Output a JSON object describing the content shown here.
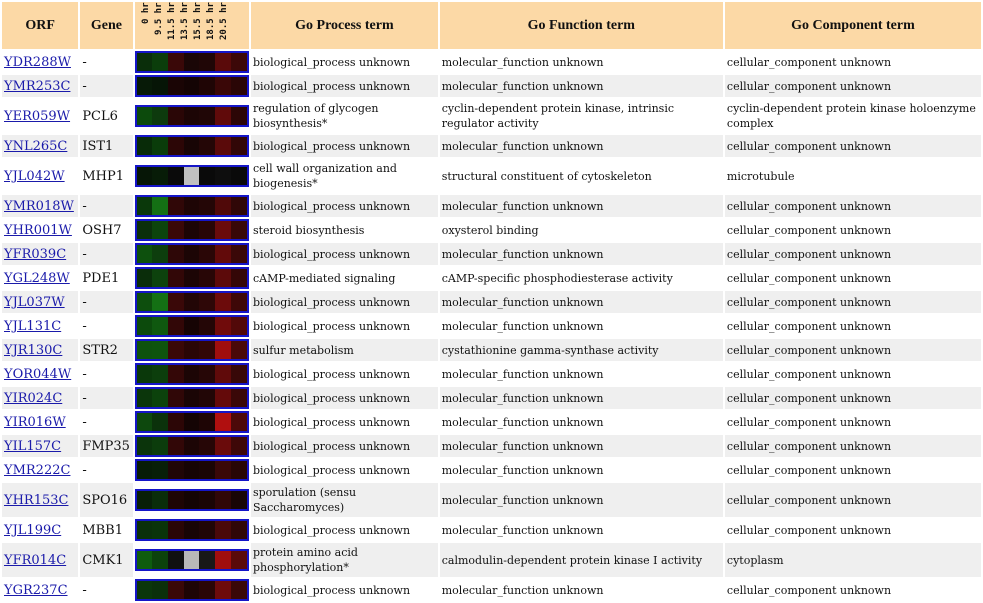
{
  "headers": {
    "orf": "ORF",
    "gene": "Gene",
    "time_points": [
      "0 hr",
      "9.5 hr",
      "11.5 hr",
      "13.5 hr",
      "15.5 hr",
      "18.5 hr",
      "20.5 hr"
    ],
    "process": "Go Process term",
    "function": "Go Function term",
    "component": "Go Component term"
  },
  "rows": [
    {
      "orf": "YDR288W",
      "gene": "-",
      "process": "biological_process unknown",
      "function": "molecular_function unknown",
      "component": "cellular_component unknown",
      "heat": [
        "#0a2e0a",
        "#0b3d0b",
        "#3a0808",
        "#1a0606",
        "#200606",
        "#5a0a0a",
        "#3c0808"
      ]
    },
    {
      "orf": "YMR253C",
      "gene": "-",
      "process": "biological_process unknown",
      "function": "molecular_function unknown",
      "component": "cellular_component unknown",
      "heat": [
        "#071a07",
        "#061506",
        "#1a0505",
        "#140404",
        "#1f0505",
        "#3a0707",
        "#2a0606"
      ]
    },
    {
      "orf": "YER059W",
      "gene": "PCL6",
      "process": "regulation of glycogen biosynthesis*",
      "function": "cyclin-dependent protein kinase, intrinsic regulator activity",
      "component": "cyclin-dependent protein kinase holoenzyme complex",
      "heat": [
        "#0c4a0c",
        "#0d3a0d",
        "#2a0606",
        "#1c0505",
        "#200606",
        "#600a0a",
        "#2c0606"
      ]
    },
    {
      "orf": "YNL265C",
      "gene": "IST1",
      "process": "biological_process unknown",
      "function": "molecular_function unknown",
      "component": "cellular_component unknown",
      "heat": [
        "#082b08",
        "#0a3c0a",
        "#2c0606",
        "#180505",
        "#240606",
        "#5a0a0a",
        "#320707"
      ]
    },
    {
      "orf": "YJL042W",
      "gene": "MHP1",
      "process": "cell wall organization and biogenesis*",
      "function": "structural constituent of cytoskeleton",
      "component": "microtubule",
      "heat": [
        "#061606",
        "#071c07",
        "#0a0a0a",
        "#c0c0c0",
        "#0a0a0a",
        "#0e0e0e",
        "#0a0a0a"
      ]
    },
    {
      "orf": "YMR018W",
      "gene": "-",
      "process": "biological_process unknown",
      "function": "molecular_function unknown",
      "component": "cellular_component unknown",
      "heat": [
        "#0a380a",
        "#147014",
        "#300707",
        "#1e0505",
        "#240606",
        "#500909",
        "#300707"
      ]
    },
    {
      "orf": "YHR001W",
      "gene": "OSH7",
      "process": "steroid biosynthesis",
      "function": "oxysterol binding",
      "component": "cellular_component unknown",
      "heat": [
        "#0b2f0b",
        "#0c440c",
        "#3a0808",
        "#1c0505",
        "#280606",
        "#6a0b0b",
        "#380808"
      ]
    },
    {
      "orf": "YFR039C",
      "gene": "-",
      "process": "biological_process unknown",
      "function": "molecular_function unknown",
      "component": "cellular_component unknown",
      "heat": [
        "#0d500d",
        "#0d3e0d",
        "#2e0707",
        "#1c0505",
        "#2a0606",
        "#620a0a",
        "#3a0808"
      ]
    },
    {
      "orf": "YGL248W",
      "gene": "PDE1",
      "process": "cAMP-mediated signaling",
      "function": "cAMP-specific phosphodiesterase activity",
      "component": "cellular_component unknown",
      "heat": [
        "#0a2d0a",
        "#0d420d",
        "#320707",
        "#1c0505",
        "#280606",
        "#5c0a0a",
        "#340707"
      ]
    },
    {
      "orf": "YJL037W",
      "gene": "-",
      "process": "biological_process unknown",
      "function": "molecular_function unknown",
      "component": "cellular_component unknown",
      "heat": [
        "#0d4e0d",
        "#147014",
        "#3a0808",
        "#220606",
        "#2e0707",
        "#6c0b0b",
        "#3e0808"
      ]
    },
    {
      "orf": "YJL131C",
      "gene": "-",
      "process": "biological_process unknown",
      "function": "molecular_function unknown",
      "component": "cellular_component unknown",
      "heat": [
        "#0c4a0c",
        "#0f580f",
        "#320707",
        "#160404",
        "#240606",
        "#700b0b",
        "#520909"
      ]
    },
    {
      "orf": "YJR130C",
      "gene": "STR2",
      "process": "sulfur metabolism",
      "function": "cystathionine gamma-synthase activity",
      "component": "cellular_component unknown",
      "heat": [
        "#0e520e",
        "#0e540e",
        "#3a0808",
        "#2a0606",
        "#320707",
        "#a00e0e",
        "#4a0909"
      ]
    },
    {
      "orf": "YOR044W",
      "gene": "-",
      "process": "biological_process unknown",
      "function": "molecular_function unknown",
      "component": "cellular_component unknown",
      "heat": [
        "#0a380a",
        "#0c3e0c",
        "#340707",
        "#1c0505",
        "#260606",
        "#600a0a",
        "#380808"
      ]
    },
    {
      "orf": "YIR024C",
      "gene": "-",
      "process": "biological_process unknown",
      "function": "molecular_function unknown",
      "component": "cellular_component unknown",
      "heat": [
        "#0b360b",
        "#0c420c",
        "#300707",
        "#1a0505",
        "#220606",
        "#640a0a",
        "#3a0808"
      ]
    },
    {
      "orf": "YIR016W",
      "gene": "-",
      "process": "biological_process unknown",
      "function": "molecular_function unknown",
      "component": "cellular_component unknown",
      "heat": [
        "#0d480d",
        "#0b320b",
        "#2c0606",
        "#140404",
        "#1e0505",
        "#b00f0f",
        "#4c0909"
      ]
    },
    {
      "orf": "YIL157C",
      "gene": "FMP35",
      "process": "biological_process unknown",
      "function": "molecular_function unknown",
      "component": "cellular_component unknown",
      "heat": [
        "#0b340b",
        "#0c3c0c",
        "#320707",
        "#1c0505",
        "#260606",
        "#6a0b0b",
        "#3e0808"
      ]
    },
    {
      "orf": "YMR222C",
      "gene": "-",
      "process": "biological_process unknown",
      "function": "molecular_function unknown",
      "component": "cellular_component unknown",
      "heat": [
        "#071c07",
        "#081f08",
        "#200606",
        "#160404",
        "#1a0505",
        "#3a0808",
        "#280606"
      ]
    },
    {
      "orf": "YHR153C",
      "gene": "SPO16",
      "process": "sporulation (sensu Saccharomyces)",
      "function": "molecular_function unknown",
      "component": "cellular_component unknown",
      "heat": [
        "#081f08",
        "#0a2d0a",
        "#1e0505",
        "#140404",
        "#1a0505",
        "#300707",
        "#180505"
      ]
    },
    {
      "orf": "YJL199C",
      "gene": "MBB1",
      "process": "biological_process unknown",
      "function": "molecular_function unknown",
      "component": "cellular_component unknown",
      "heat": [
        "#0a300a",
        "#0a340a",
        "#2a0606",
        "#180505",
        "#200606",
        "#4a0909",
        "#300707"
      ]
    },
    {
      "orf": "YFR014C",
      "gene": "CMK1",
      "process": "protein amino acid phosphorylation*",
      "function": "calmodulin-dependent protein kinase I activity",
      "component": "cytoplasm",
      "heat": [
        "#0f5c0f",
        "#0c420c",
        "#101010",
        "#b8b8b8",
        "#181818",
        "#a00e0e",
        "#5a0a0a"
      ]
    },
    {
      "orf": "YGR237C",
      "gene": "-",
      "process": "biological_process unknown",
      "function": "molecular_function unknown",
      "component": "cellular_component unknown",
      "heat": [
        "#0b360b",
        "#0b300b",
        "#3a0808",
        "#1e0505",
        "#2a0606",
        "#6e0b0b",
        "#3a0808"
      ]
    }
  ]
}
